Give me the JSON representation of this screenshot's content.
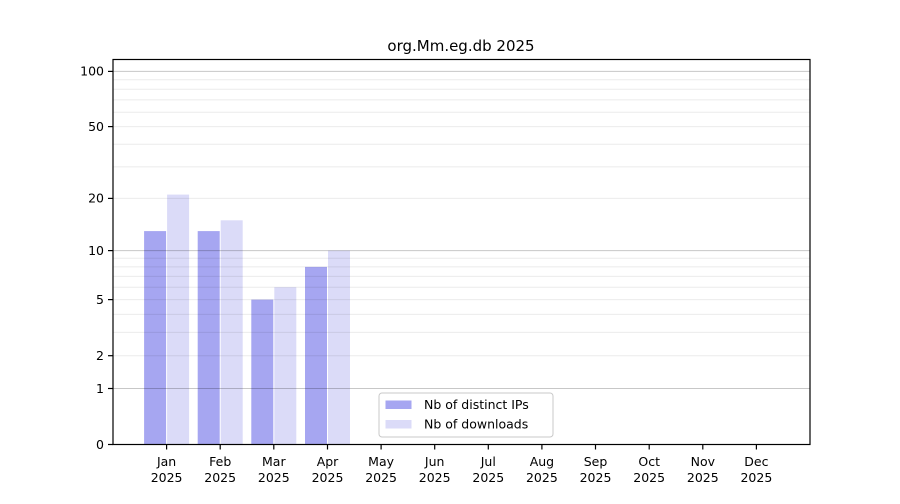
{
  "chart_data": {
    "type": "bar",
    "title": "org.Mm.eg.db 2025",
    "categories": [
      "Jan",
      "Feb",
      "Mar",
      "Apr",
      "May",
      "Jun",
      "Jul",
      "Aug",
      "Sep",
      "Oct",
      "Nov",
      "Dec"
    ],
    "year_label": "2025",
    "series": [
      {
        "name": "Nb of distinct IPs",
        "color": "#a6a6f1",
        "values": [
          13,
          13,
          5,
          8,
          0,
          0,
          0,
          0,
          0,
          0,
          0,
          0
        ]
      },
      {
        "name": "Nb of downloads",
        "color": "#dbdbf8",
        "values": [
          21,
          15,
          6,
          10,
          0,
          0,
          0,
          0,
          0,
          0,
          0,
          0
        ]
      }
    ],
    "yscale": "log1p",
    "ylim": [
      0,
      116
    ],
    "y_ticks": [
      "0",
      "1",
      "2",
      "5",
      "10",
      "20",
      "50",
      "100"
    ],
    "decade_gridlines": [
      1,
      10,
      100
    ],
    "light_gridlines": [
      2,
      3,
      4,
      5,
      6,
      7,
      8,
      9,
      20,
      30,
      40,
      50,
      60,
      70,
      80,
      90
    ],
    "grid_on": true,
    "legend_position": "inside-bottom-left-of-center",
    "colors": {
      "axis": "#000000",
      "grid_decade": "rgba(0,0,0,0.22)",
      "grid_light": "rgba(0,0,0,0.08)",
      "legend_border": "#c9c9c9",
      "legend_background": "rgba(255,255,255,0.9)",
      "plot_background": "#ffffff"
    }
  }
}
